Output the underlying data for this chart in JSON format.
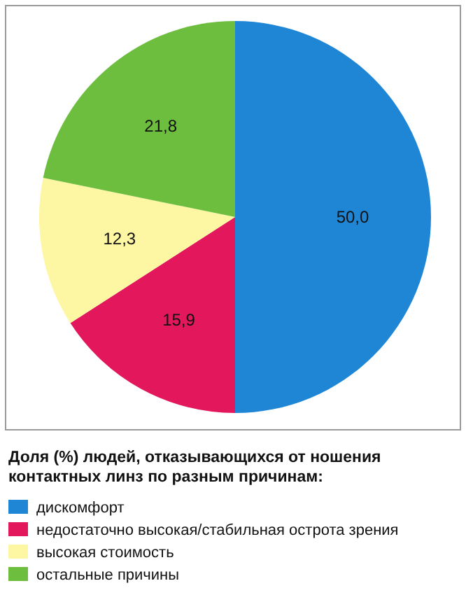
{
  "chart_data": {
    "type": "pie",
    "title": "Доля (%) людей, отказывающихся от ношения контактных линз по разным причинам:",
    "categories": [
      "дискомфорт",
      "недостаточно высокая/стабильная острота зрения",
      "высокая стоимость",
      "остальные причины"
    ],
    "values": [
      50.0,
      15.9,
      12.3,
      21.8
    ],
    "value_labels": [
      "50,0",
      "15,9",
      "12,3",
      "21,8"
    ],
    "colors": [
      "#1f86d6",
      "#e3175b",
      "#fdf7a3",
      "#6dbe3f"
    ],
    "legend": "bottom"
  }
}
